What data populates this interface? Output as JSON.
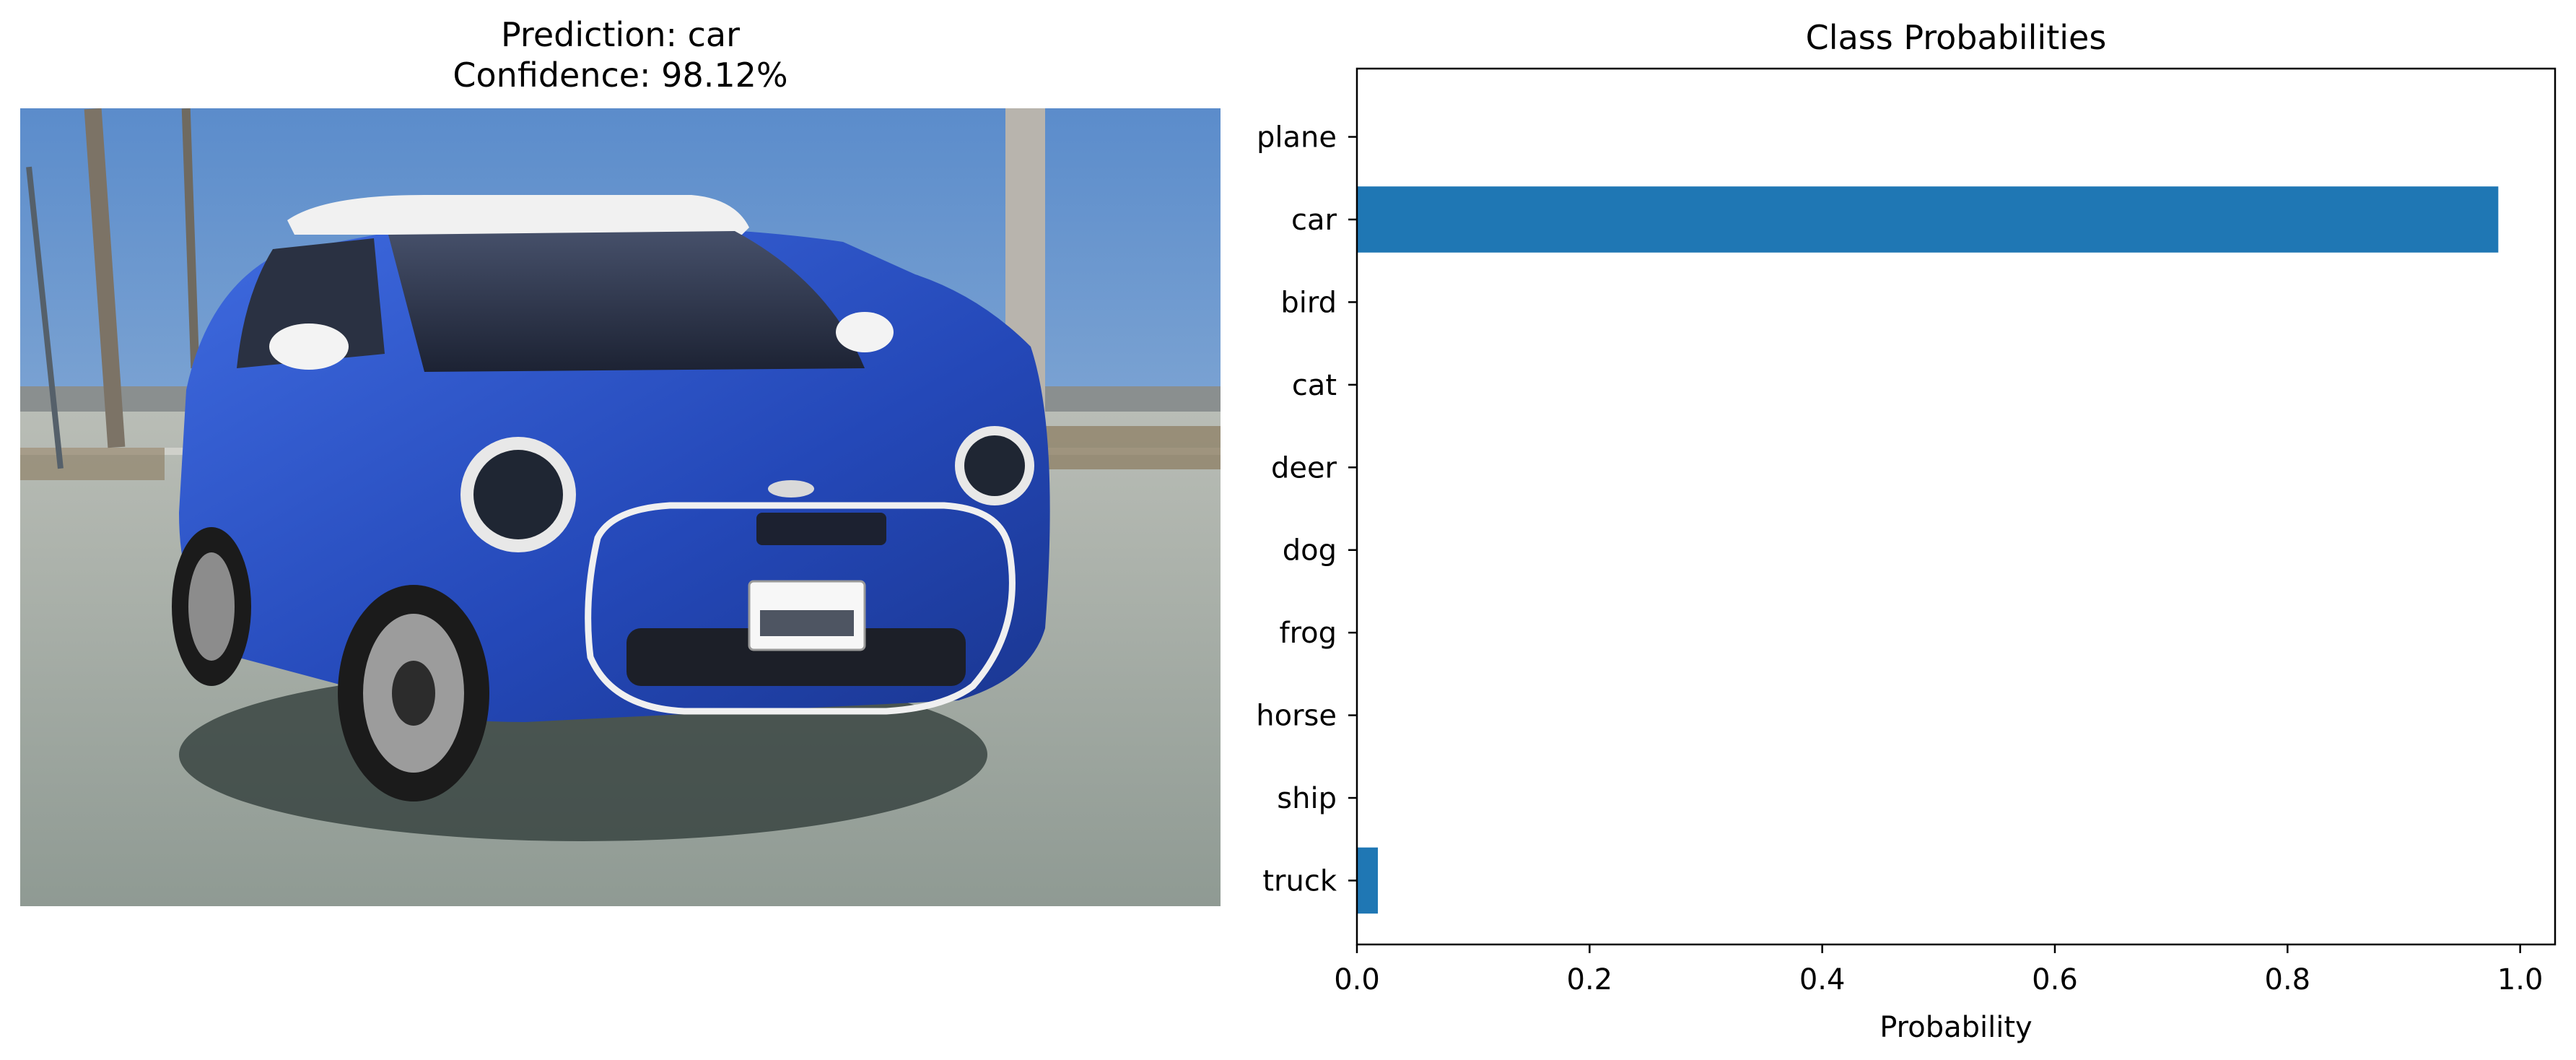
{
  "photo_panel": {
    "title_line1": "Prediction: car",
    "title_line2": "Confidence: 98.12%"
  },
  "colors": {
    "bar": "#1f77b4",
    "wall": "#5c8cc8",
    "car_body": "#2a52c9",
    "ground": "#9aa4a0"
  },
  "chart_data": {
    "type": "bar",
    "orientation": "horizontal",
    "title": "Class Probabilities",
    "xlabel": "Probability",
    "ylabel": "",
    "xlim": [
      0.0,
      1.03
    ],
    "xticks": [
      "0.0",
      "0.2",
      "0.4",
      "0.6",
      "0.8",
      "1.0"
    ],
    "xtick_values": [
      0.0,
      0.2,
      0.4,
      0.6,
      0.8,
      1.0
    ],
    "categories": [
      "plane",
      "car",
      "bird",
      "cat",
      "deer",
      "dog",
      "frog",
      "horse",
      "ship",
      "truck"
    ],
    "values": [
      0.0,
      0.9812,
      0.0,
      0.0,
      0.0,
      0.0,
      0.0,
      0.0,
      0.0,
      0.018
    ],
    "grid": false,
    "legend": "none"
  }
}
